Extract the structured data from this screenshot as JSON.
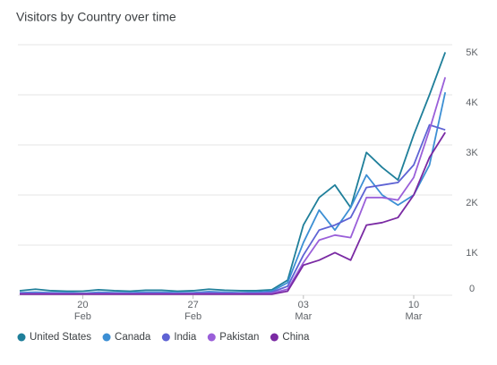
{
  "chart_data": {
    "type": "line",
    "title": "Visitors by Country over time",
    "categories": [
      null,
      null,
      null,
      null,
      null,
      null,
      null,
      null,
      null,
      null,
      null,
      null,
      null,
      null,
      null,
      null,
      null,
      null,
      null,
      null,
      null,
      null,
      null,
      null,
      null,
      null,
      null,
      null
    ],
    "xticks": [
      {
        "value": 4,
        "label": "20",
        "sublabel": "Feb"
      },
      {
        "value": 11,
        "label": "27",
        "sublabel": "Feb"
      },
      {
        "value": 18,
        "label": "03",
        "sublabel": "Mar"
      },
      {
        "value": 25,
        "label": "10",
        "sublabel": "Mar"
      }
    ],
    "ylim": [
      0,
      5000
    ],
    "yticks": [
      {
        "value": 0,
        "label": "0"
      },
      {
        "value": 1000,
        "label": "1K"
      },
      {
        "value": 2000,
        "label": "2K"
      },
      {
        "value": 3000,
        "label": "3K"
      },
      {
        "value": 4000,
        "label": "4K"
      },
      {
        "value": 5000,
        "label": "5K"
      }
    ],
    "grid": true,
    "legend": "bottom",
    "series": [
      {
        "name": "United States",
        "color": "#1f7f9a",
        "values": [
          90,
          120,
          90,
          80,
          80,
          110,
          90,
          80,
          100,
          100,
          80,
          90,
          120,
          100,
          90,
          90,
          110,
          300,
          1400,
          1950,
          2200,
          1750,
          2850,
          2550,
          2300,
          3200,
          4000,
          4850
        ]
      },
      {
        "name": "Canada",
        "color": "#3c8fd4",
        "values": [
          50,
          60,
          50,
          50,
          40,
          60,
          50,
          50,
          60,
          60,
          50,
          50,
          70,
          60,
          50,
          60,
          80,
          250,
          1050,
          1700,
          1300,
          1750,
          2400,
          2000,
          1800,
          2000,
          2600,
          4050
        ]
      },
      {
        "name": "India",
        "color": "#5e63d4",
        "values": [
          40,
          40,
          40,
          30,
          30,
          40,
          40,
          30,
          40,
          40,
          30,
          40,
          50,
          40,
          40,
          40,
          60,
          180,
          800,
          1300,
          1400,
          1550,
          2150,
          2200,
          2250,
          2600,
          3400,
          3300
        ]
      },
      {
        "name": "Pakistan",
        "color": "#9a5fd9",
        "values": [
          30,
          30,
          30,
          30,
          30,
          30,
          30,
          30,
          30,
          30,
          30,
          30,
          30,
          30,
          30,
          30,
          40,
          120,
          650,
          1100,
          1200,
          1150,
          1950,
          1950,
          1900,
          2350,
          3300,
          4350
        ]
      },
      {
        "name": "China",
        "color": "#7a2aa3",
        "values": [
          20,
          20,
          20,
          20,
          20,
          20,
          20,
          20,
          20,
          20,
          20,
          20,
          20,
          20,
          20,
          20,
          20,
          80,
          600,
          700,
          850,
          700,
          1400,
          1450,
          1550,
          2000,
          2750,
          3250
        ]
      }
    ]
  }
}
